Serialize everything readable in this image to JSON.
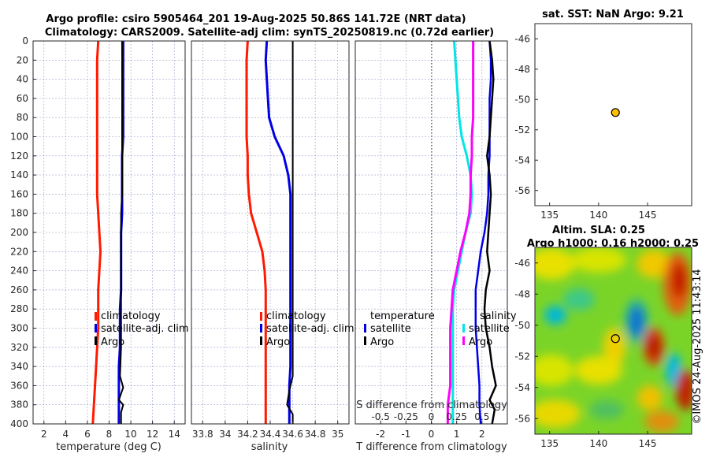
{
  "titles": {
    "line1": "Argo profile: csiro 5905464_201 19-Aug-2025 50.86S 141.72E (NRT data)",
    "line2": "Climatology: CARS2009. Satellite-adj clim: synTS_20250819.nc (0.72d earlier)",
    "sst": "sat. SST: NaN Argo: 9.21",
    "sla1": "Altim. SLA: 0.25",
    "sla2": "Argo h1000: 0.16 h2000: 0.25"
  },
  "credit": "©IMOS 24-Aug-2025 11:43:14",
  "colors": {
    "climatology": "#ff1a00",
    "satellite": "#0000e6",
    "argo": "#000000",
    "t_satellite": "#00e5e5",
    "s_satellite": "#ff00ff",
    "marker": "#ffc000"
  },
  "chart_data": [
    {
      "type": "line",
      "name": "temperature",
      "xlabel": "temperature (deg C)",
      "xlim": [
        1,
        15
      ],
      "xticks": [
        2,
        4,
        6,
        8,
        10,
        12,
        14
      ],
      "ylim": [
        0,
        400
      ],
      "yticks": [
        0,
        20,
        40,
        60,
        80,
        100,
        120,
        140,
        160,
        180,
        200,
        220,
        240,
        260,
        280,
        300,
        320,
        340,
        360,
        380,
        400
      ],
      "legend": [
        "climatology",
        "satellite-adj. clim",
        "Argo"
      ],
      "series": [
        {
          "name": "climatology",
          "color_key": "climatology",
          "width": 3,
          "x": [
            7.0,
            6.9,
            6.9,
            6.9,
            6.9,
            6.9,
            6.9,
            6.9,
            6.9,
            7.0,
            7.1,
            7.2,
            7.1,
            7.0,
            7.0,
            7.0,
            6.9,
            6.8,
            6.7,
            6.6,
            6.5
          ],
          "y": [
            0,
            20,
            40,
            60,
            80,
            100,
            120,
            140,
            160,
            180,
            200,
            220,
            240,
            260,
            280,
            300,
            320,
            340,
            360,
            380,
            400
          ]
        },
        {
          "name": "satellite-adj. clim",
          "color_key": "satellite",
          "width": 3,
          "x": [
            9.3,
            9.3,
            9.3,
            9.3,
            9.3,
            9.3,
            9.2,
            9.2,
            9.2,
            9.2,
            9.1,
            9.1,
            9.1,
            9.1,
            9.0,
            9.0,
            9.0,
            8.9,
            8.9,
            8.9,
            8.9
          ],
          "y": [
            0,
            20,
            40,
            60,
            80,
            100,
            120,
            140,
            160,
            180,
            200,
            220,
            240,
            260,
            280,
            300,
            320,
            340,
            360,
            380,
            400
          ]
        },
        {
          "name": "Argo",
          "color_key": "argo",
          "width": 2,
          "x": [
            9.2,
            9.2,
            9.2,
            9.2,
            9.2,
            9.2,
            9.2,
            9.2,
            9.2,
            9.1,
            9.1,
            9.1,
            9.1,
            9.1,
            9.1,
            9.1,
            9.1,
            9.0,
            9.3,
            8.9,
            9.3,
            9.1,
            9.1
          ],
          "y": [
            0,
            20,
            40,
            60,
            80,
            100,
            120,
            140,
            160,
            180,
            200,
            220,
            240,
            260,
            280,
            300,
            320,
            350,
            362,
            375,
            380,
            388,
            400
          ]
        }
      ]
    },
    {
      "type": "line",
      "name": "salinity",
      "xlabel": "salinity",
      "xlim": [
        33.7,
        35.1
      ],
      "xticks": [
        33.8,
        34,
        34.2,
        34.4,
        34.6,
        34.8,
        35
      ],
      "xticklabels": [
        "33.8",
        "34",
        "34.2",
        "34.4",
        "34.6",
        "34.8",
        "35"
      ],
      "ylim": [
        0,
        400
      ],
      "legend": [
        "climatology",
        "satellite-adj. clim",
        "Argo"
      ],
      "series": [
        {
          "name": "climatology",
          "color_key": "climatology",
          "width": 3,
          "x": [
            34.2,
            34.19,
            34.19,
            34.19,
            34.19,
            34.19,
            34.2,
            34.2,
            34.21,
            34.23,
            34.28,
            34.33,
            34.35,
            34.36,
            34.36,
            34.36,
            34.36,
            34.36,
            34.36,
            34.36,
            34.36
          ],
          "y": [
            0,
            20,
            40,
            60,
            80,
            100,
            120,
            140,
            160,
            180,
            200,
            220,
            240,
            260,
            280,
            300,
            320,
            340,
            360,
            380,
            400
          ]
        },
        {
          "name": "satellite-adj. clim",
          "color_key": "satellite",
          "width": 3,
          "x": [
            34.37,
            34.36,
            34.37,
            34.38,
            34.39,
            34.44,
            34.52,
            34.56,
            34.58,
            34.58,
            34.58,
            34.58,
            34.58,
            34.58,
            34.58,
            34.58,
            34.58,
            34.58,
            34.57,
            34.57,
            34.57
          ],
          "y": [
            0,
            20,
            40,
            60,
            80,
            100,
            120,
            140,
            160,
            180,
            200,
            220,
            240,
            260,
            280,
            300,
            320,
            340,
            360,
            380,
            400
          ]
        },
        {
          "name": "Argo",
          "color_key": "argo",
          "width": 2,
          "x": [
            34.6,
            34.6,
            34.6,
            34.6,
            34.6,
            34.6,
            34.6,
            34.6,
            34.6,
            34.6,
            34.6,
            34.6,
            34.6,
            34.6,
            34.6,
            34.6,
            34.6,
            34.6,
            34.57,
            34.55,
            34.6,
            34.6
          ],
          "y": [
            0,
            20,
            40,
            60,
            80,
            100,
            120,
            140,
            160,
            180,
            200,
            220,
            240,
            260,
            280,
            300,
            320,
            350,
            365,
            380,
            390,
            400
          ]
        }
      ]
    },
    {
      "type": "line",
      "name": "difference",
      "xlabel": "T difference from climatology",
      "xlabel_top": "S difference from climatology",
      "xlim": [
        -3,
        3
      ],
      "xticks": [
        -2,
        -1,
        0,
        1,
        2
      ],
      "xticks_s": [
        "-0.5",
        "-0.25",
        "0",
        "0.25",
        "0.5"
      ],
      "ylim": [
        0,
        400
      ],
      "legend_left_title": "temperature",
      "legend_right_title": "salinity",
      "legend_left": [
        "satellite",
        "Argo"
      ],
      "legend_right": [
        "satellite",
        "Argo"
      ],
      "series": [
        {
          "name": "T satellite",
          "color_key": "t_satellite",
          "width": 3,
          "x": [
            0.9,
            0.95,
            1.0,
            1.05,
            1.1,
            1.2,
            1.4,
            1.55,
            1.6,
            1.55,
            1.35,
            1.2,
            1.05,
            0.9,
            0.85,
            0.85,
            0.85,
            0.85,
            0.85,
            0.85,
            0.85
          ],
          "y": [
            0,
            20,
            40,
            60,
            80,
            100,
            120,
            140,
            160,
            180,
            200,
            220,
            240,
            260,
            280,
            300,
            320,
            340,
            360,
            380,
            400
          ]
        },
        {
          "name": "S satellite",
          "color_key": "s_satellite",
          "width": 3,
          "x": [
            1.65,
            1.65,
            1.65,
            1.65,
            1.65,
            1.6,
            1.6,
            1.55,
            1.55,
            1.5,
            1.35,
            1.15,
            1.0,
            0.85,
            0.8,
            0.75,
            0.75,
            0.75,
            0.75,
            0.65,
            0.65
          ],
          "y": [
            0,
            20,
            40,
            60,
            80,
            100,
            120,
            140,
            160,
            180,
            200,
            220,
            240,
            260,
            280,
            300,
            320,
            340,
            360,
            380,
            400
          ]
        },
        {
          "name": "T Argo",
          "color_key": "satellite",
          "width": 2.5,
          "x": [
            2.3,
            2.35,
            2.35,
            2.3,
            2.3,
            2.3,
            2.3,
            2.25,
            2.25,
            2.2,
            2.1,
            1.95,
            1.85,
            1.75,
            1.75,
            1.75,
            1.8,
            1.85,
            1.9,
            1.9,
            1.95
          ],
          "y": [
            0,
            20,
            40,
            60,
            80,
            100,
            120,
            140,
            160,
            180,
            200,
            220,
            240,
            260,
            280,
            300,
            320,
            340,
            360,
            380,
            400
          ]
        },
        {
          "name": "S Argo",
          "color_key": "argo",
          "width": 2.5,
          "x": [
            2.3,
            2.4,
            2.45,
            2.4,
            2.35,
            2.3,
            2.2,
            2.3,
            2.35,
            2.3,
            2.25,
            2.2,
            2.3,
            2.15,
            2.1,
            2.15,
            2.3,
            2.4,
            2.55,
            2.3,
            2.5,
            2.4
          ],
          "y": [
            0,
            20,
            40,
            60,
            80,
            100,
            120,
            140,
            160,
            180,
            200,
            220,
            240,
            260,
            280,
            300,
            320,
            340,
            360,
            375,
            385,
            400
          ]
        }
      ]
    },
    {
      "type": "scatter",
      "name": "sst-map",
      "xlim": [
        133.5,
        149.5
      ],
      "xticks": [
        135,
        140,
        145
      ],
      "ylim": [
        -57,
        -45
      ],
      "yticks": [
        -46,
        -48,
        -50,
        -52,
        -54,
        -56
      ],
      "points": [
        {
          "x": 141.72,
          "y": -50.86
        }
      ]
    },
    {
      "type": "heatmap",
      "name": "sla-map",
      "xlim": [
        133.5,
        149.5
      ],
      "xticks": [
        135,
        140,
        145
      ],
      "ylim": [
        -57,
        -45
      ],
      "yticks": [
        -46,
        -48,
        -50,
        -52,
        -54,
        -56
      ],
      "points": [
        {
          "x": 141.72,
          "y": -50.86
        }
      ]
    }
  ]
}
